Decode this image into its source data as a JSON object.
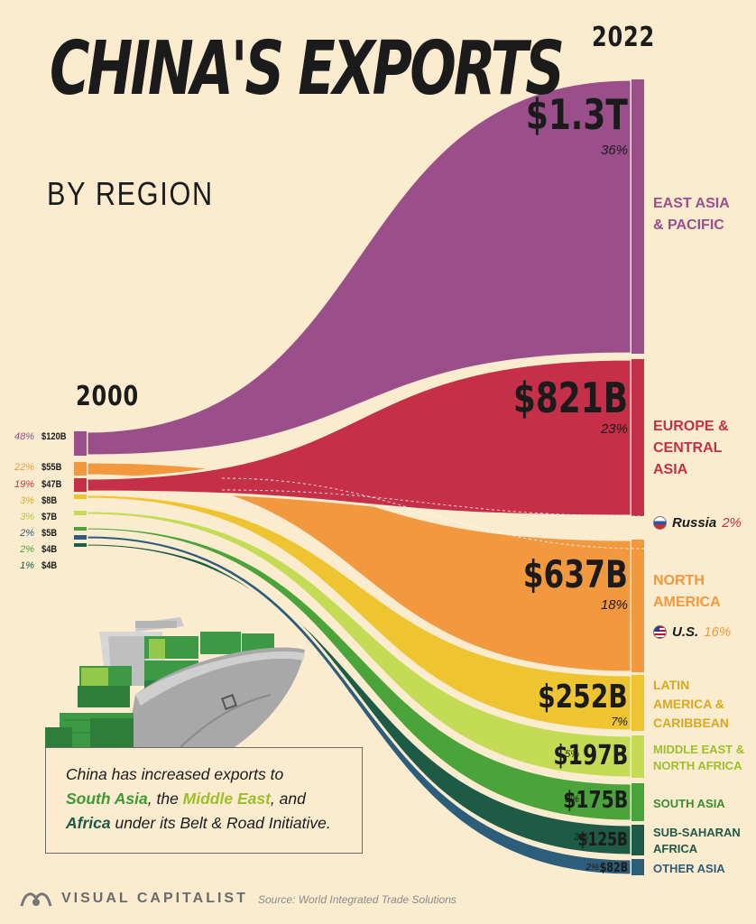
{
  "title": "CHINA'S EXPORTS",
  "subtitle": "BY REGION",
  "year_left": "2000",
  "year_right": "2022",
  "colors": {
    "background": "#fbecd0",
    "east_asia": "#9b4f8a",
    "europe": "#c53048",
    "north_america": "#f2993f",
    "latin_america": "#efc431",
    "middle_east": "#c4db56",
    "south_asia": "#4aa43a",
    "sub_saharan": "#1d5b46",
    "other_asia": "#2c5d7a"
  },
  "chart_data": {
    "type": "area",
    "title": "CHINA'S EXPORTS",
    "subtitle": "BY REGION",
    "x": [
      "2000",
      "2022"
    ],
    "series": [
      {
        "name": "EAST ASIA\n& PACIFIC",
        "values_label": [
          "$120B",
          "$1.3T"
        ],
        "share": [
          "48%",
          "36%"
        ],
        "color": "#9b4f8a"
      },
      {
        "name": "EUROPE &\nCENTRAL\nASIA",
        "values_label": [
          "$47B",
          "$821B"
        ],
        "share": [
          "19%",
          "23%"
        ],
        "color": "#c53048"
      },
      {
        "name": "NORTH\nAMERICA",
        "values_label": [
          "$55B",
          "$637B"
        ],
        "share": [
          "22%",
          "18%"
        ],
        "color": "#f2993f"
      },
      {
        "name": "LATIN\nAMERICA &\nCARIBBEAN",
        "values_label": [
          "$8B",
          "$252B"
        ],
        "share": [
          "3%",
          "7%"
        ],
        "color": "#efc431"
      },
      {
        "name": "MIDDLE EAST &\nNORTH AFRICA",
        "values_label": [
          "$7B",
          "$197B"
        ],
        "share": [
          "3%",
          "5%"
        ],
        "color": "#c4db56"
      },
      {
        "name": "SOUTH ASIA",
        "values_label": [
          "$4B",
          "$175B"
        ],
        "share": [
          "2%",
          "5%"
        ],
        "color": "#4aa43a"
      },
      {
        "name": "SUB-SAHARAN\nAFRICA",
        "values_label": [
          "$4B",
          "$125B"
        ],
        "share": [
          "1%",
          "3%"
        ],
        "color": "#1d5b46"
      },
      {
        "name": "OTHER ASIA",
        "values_label": [
          "$5B",
          "$82B"
        ],
        "share": [
          "2%",
          "2%"
        ],
        "color": "#2c5d7a"
      }
    ],
    "values_billions": {
      "2000": [
        120,
        47,
        55,
        8,
        7,
        4,
        4,
        5
      ],
      "2022": [
        1300,
        821,
        637,
        252,
        197,
        175,
        125,
        82
      ]
    },
    "sub_items": [
      {
        "name": "Russia",
        "share": "2%"
      },
      {
        "name": "U.S.",
        "share": "16%"
      }
    ]
  },
  "left_rows": [
    {
      "pct": "48%",
      "val": "$120B",
      "color": "#9b4f8a"
    },
    {
      "pct": "22%",
      "val": "$55B",
      "color": "#f2993f"
    },
    {
      "pct": "19%",
      "val": "$47B",
      "color": "#c53048"
    },
    {
      "pct": "3%",
      "val": "$8B",
      "color": "#d8b122"
    },
    {
      "pct": "3%",
      "val": "$7B",
      "color": "#b6c93e"
    },
    {
      "pct": "2%",
      "val": "$5B",
      "color": "#2c5d7a"
    },
    {
      "pct": "2%",
      "val": "$4B",
      "color": "#4aa43a"
    },
    {
      "pct": "1%",
      "val": "$4B",
      "color": "#1d5b46"
    }
  ],
  "right_labels": {
    "east_asia": {
      "value": "$1.3T",
      "pct": "36%",
      "name": "EAST ASIA\n& PACIFIC"
    },
    "europe": {
      "value": "$821B",
      "pct": "23%",
      "name": "EUROPE &\nCENTRAL\nASIA"
    },
    "north_america": {
      "value": "$637B",
      "pct": "18%",
      "name": "NORTH\nAMERICA"
    },
    "latin_america": {
      "value": "$252B",
      "pct": "7%",
      "name": "LATIN\nAMERICA &\nCARIBBEAN"
    },
    "middle_east": {
      "value": "$197B",
      "pct": "5%",
      "name": "MIDDLE EAST &\nNORTH AFRICA"
    },
    "south_asia": {
      "value": "$175B",
      "pct": "5%",
      "name": "SOUTH ASIA"
    },
    "sub_saharan": {
      "value": "$125B",
      "pct": "3%",
      "name": "SUB-SAHARAN\nAFRICA"
    },
    "other_asia": {
      "value": "$82B",
      "pct": "2%",
      "name": "OTHER ASIA"
    },
    "russia": {
      "name": "Russia",
      "pct": "2%"
    },
    "us": {
      "name": "U.S.",
      "pct": "16%"
    }
  },
  "note": {
    "line1": "China has increased exports to",
    "south_asia": "South Asia",
    "comma1": ", the ",
    "middle_east": "Middle East",
    "comma2": ", and",
    "africa": "Africa",
    "line3_rest": " under its Belt & Road Initiative."
  },
  "footer": {
    "brand": "VISUAL CAPITALIST",
    "source": "Source: World Integrated Trade Solutions"
  }
}
